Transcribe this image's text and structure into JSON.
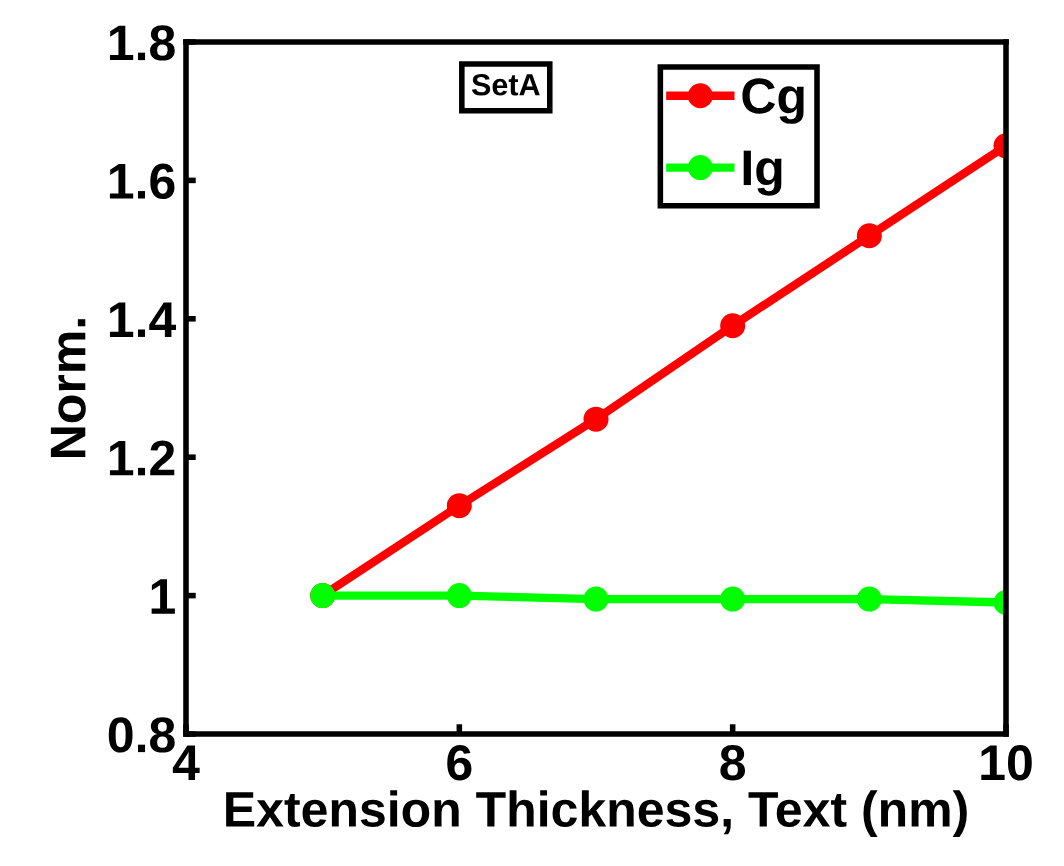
{
  "chart_data": {
    "type": "line",
    "xlabel": "Extension Thickness, Text (nm)",
    "ylabel": "Norm.",
    "x": [
      5,
      6,
      7,
      8,
      9,
      10
    ],
    "series": [
      {
        "name": "Cg",
        "color": "#ff0000",
        "values": [
          1.0,
          1.13,
          1.255,
          1.39,
          1.52,
          1.65
        ]
      },
      {
        "name": "Ig",
        "color": "#00ff00",
        "values": [
          1.0,
          1.0,
          0.995,
          0.995,
          0.995,
          0.99
        ]
      }
    ],
    "annotations": [
      "SetA"
    ],
    "xlim": [
      4,
      10
    ],
    "xticks": [
      4,
      6,
      8,
      10
    ],
    "ylim": [
      0.8,
      1.8
    ],
    "yticks": [
      0.8,
      1,
      1.2,
      1.4,
      1.6,
      1.8
    ],
    "grid": false,
    "legend": "top right",
    "marker": "circle",
    "line_style": "solid"
  }
}
